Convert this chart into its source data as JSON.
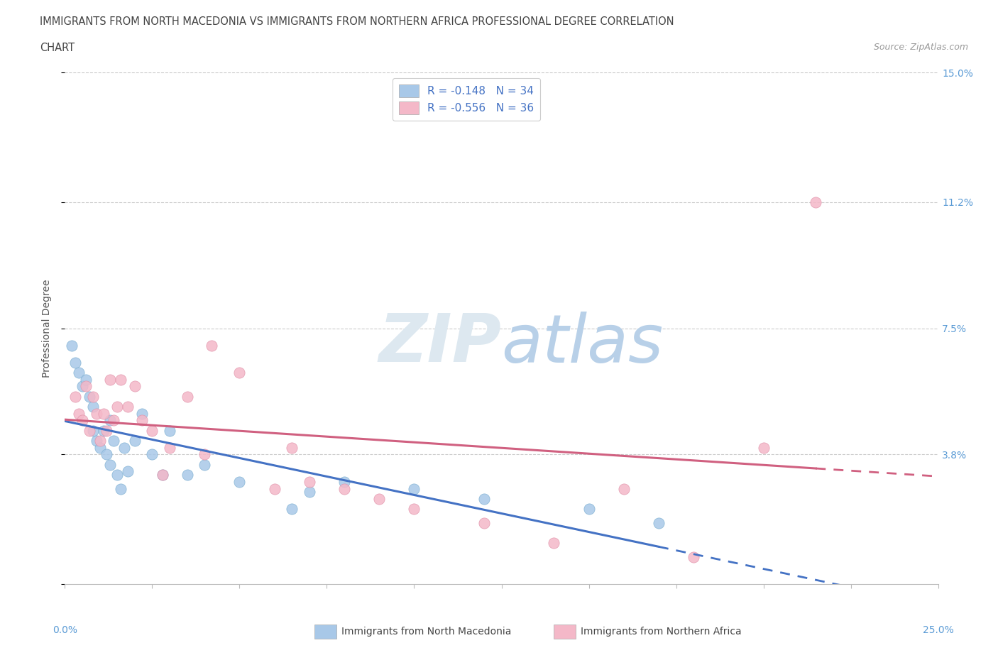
{
  "title_line1": "IMMIGRANTS FROM NORTH MACEDONIA VS IMMIGRANTS FROM NORTHERN AFRICA PROFESSIONAL DEGREE CORRELATION",
  "title_line2": "CHART",
  "source": "Source: ZipAtlas.com",
  "ylabel": "Professional Degree",
  "right_ytick_vals": [
    0.0,
    0.038,
    0.075,
    0.112,
    0.15
  ],
  "right_ytick_labels": [
    "",
    "3.8%",
    "7.5%",
    "11.2%",
    "15.0%"
  ],
  "series1_name": "Immigrants from North Macedonia",
  "series1_color": "#a8c8e8",
  "series1_edge_color": "#7aaed0",
  "series1_line_color": "#4472c4",
  "series1_R": -0.148,
  "series1_N": 34,
  "series2_name": "Immigrants from Northern Africa",
  "series2_color": "#f4b8c8",
  "series2_edge_color": "#e090a8",
  "series2_line_color": "#d06080",
  "series2_R": -0.556,
  "series2_N": 36,
  "legend_R1": "R = -0.148   N = 34",
  "legend_R2": "R = -0.556   N = 36",
  "xlim": [
    0.0,
    0.25
  ],
  "ylim": [
    0.0,
    0.15
  ],
  "background_color": "#ffffff",
  "grid_color": "#cccccc",
  "watermark_color": "#dde8f0",
  "series1_x": [
    0.002,
    0.003,
    0.004,
    0.005,
    0.006,
    0.007,
    0.008,
    0.008,
    0.009,
    0.01,
    0.011,
    0.012,
    0.013,
    0.013,
    0.014,
    0.015,
    0.016,
    0.017,
    0.018,
    0.02,
    0.022,
    0.025,
    0.028,
    0.03,
    0.035,
    0.04,
    0.05,
    0.065,
    0.07,
    0.08,
    0.1,
    0.12,
    0.15,
    0.17
  ],
  "series1_y": [
    0.07,
    0.065,
    0.062,
    0.058,
    0.06,
    0.055,
    0.052,
    0.045,
    0.042,
    0.04,
    0.045,
    0.038,
    0.048,
    0.035,
    0.042,
    0.032,
    0.028,
    0.04,
    0.033,
    0.042,
    0.05,
    0.038,
    0.032,
    0.045,
    0.032,
    0.035,
    0.03,
    0.022,
    0.027,
    0.03,
    0.028,
    0.025,
    0.022,
    0.018
  ],
  "series2_x": [
    0.003,
    0.004,
    0.005,
    0.006,
    0.007,
    0.008,
    0.009,
    0.01,
    0.011,
    0.012,
    0.013,
    0.014,
    0.015,
    0.016,
    0.018,
    0.02,
    0.022,
    0.025,
    0.028,
    0.03,
    0.035,
    0.04,
    0.042,
    0.05,
    0.06,
    0.065,
    0.07,
    0.08,
    0.09,
    0.1,
    0.12,
    0.14,
    0.16,
    0.18,
    0.2,
    0.215
  ],
  "series2_y": [
    0.055,
    0.05,
    0.048,
    0.058,
    0.045,
    0.055,
    0.05,
    0.042,
    0.05,
    0.045,
    0.06,
    0.048,
    0.052,
    0.06,
    0.052,
    0.058,
    0.048,
    0.045,
    0.032,
    0.04,
    0.055,
    0.038,
    0.07,
    0.062,
    0.028,
    0.04,
    0.03,
    0.028,
    0.025,
    0.022,
    0.018,
    0.012,
    0.028,
    0.008,
    0.04,
    0.112
  ]
}
